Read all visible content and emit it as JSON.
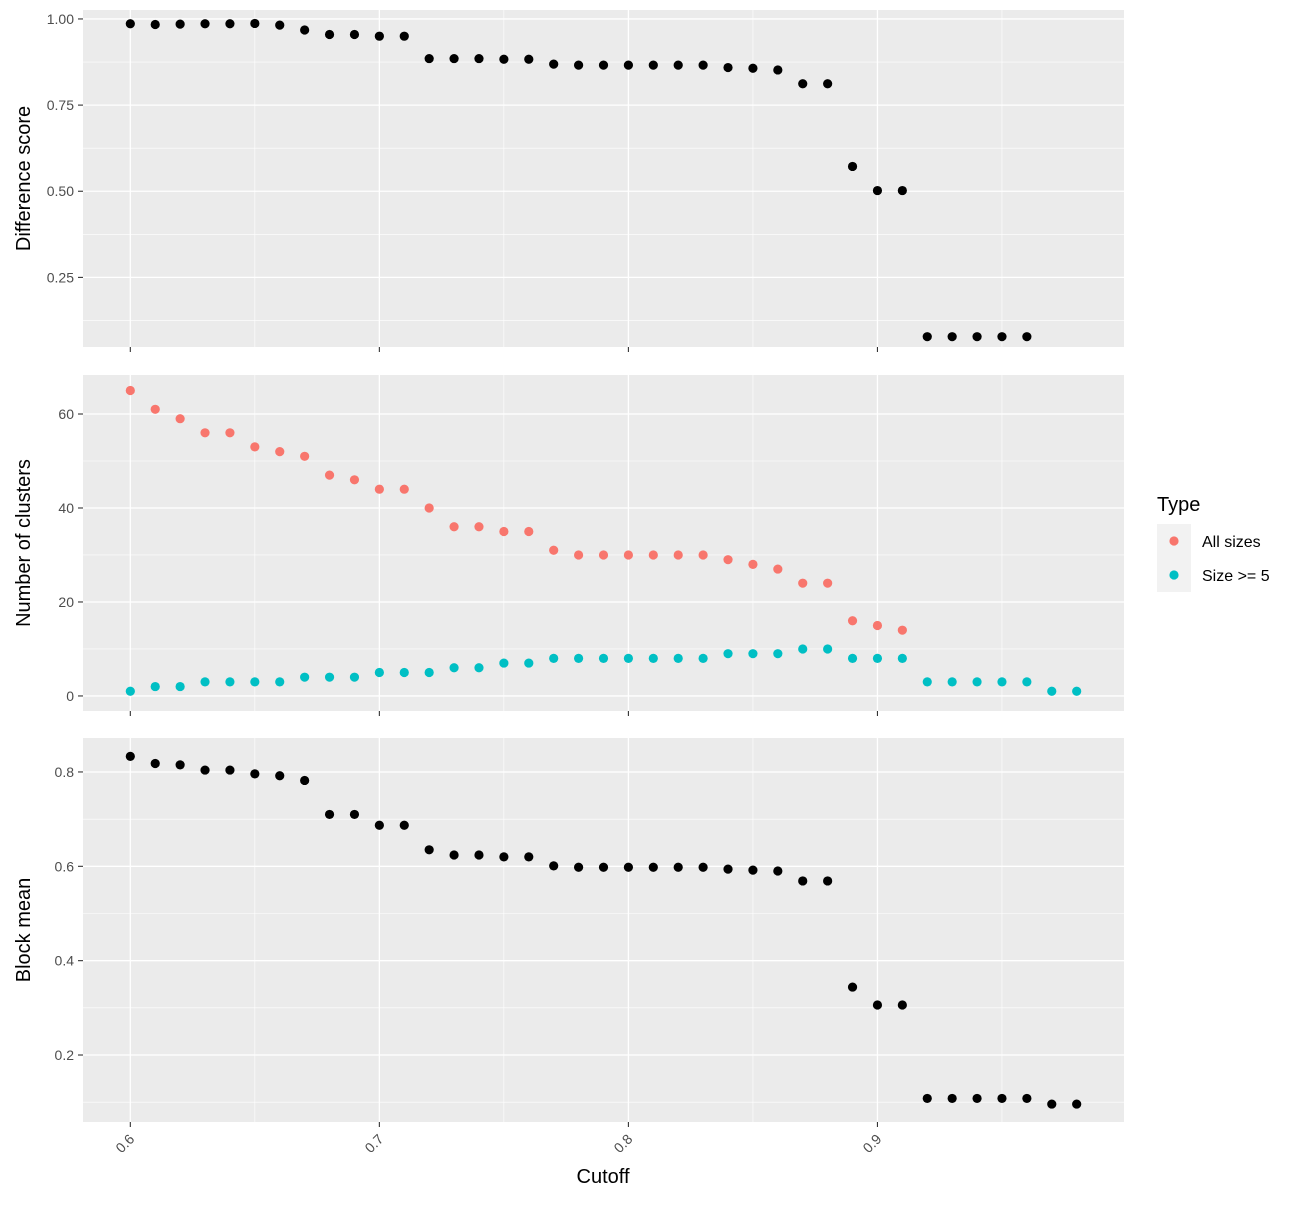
{
  "chart_data": {
    "type": "scatter",
    "layout": "stacked-facets-shared-x",
    "xlabel": "Cutoff",
    "x_ticks": [
      0.6,
      0.7,
      0.8,
      0.9
    ],
    "x_tick_labels": [
      "0.6",
      "0.7",
      "0.8",
      "0.9"
    ],
    "xlim": [
      0.581,
      0.999
    ],
    "grid": true,
    "legend": {
      "title": "Type",
      "placement": "right",
      "entries": [
        {
          "label": "All sizes",
          "color": "#F8766D"
        },
        {
          "label": "Size >= 5",
          "color": "#00BFC4"
        }
      ]
    },
    "panels": [
      {
        "ylabel": "Difference score",
        "ylim": [
          0.048,
          1.026
        ],
        "y_ticks": [
          0.25,
          0.5,
          0.75,
          1.0
        ],
        "y_tick_labels": [
          "0.25",
          "0.50",
          "0.75",
          "1.00"
        ],
        "series": [
          {
            "color": "#000000",
            "points": [
              [
                0.6,
                0.986
              ],
              [
                0.61,
                0.984
              ],
              [
                0.62,
                0.985
              ],
              [
                0.63,
                0.986
              ],
              [
                0.64,
                0.986
              ],
              [
                0.65,
                0.987
              ],
              [
                0.66,
                0.982
              ],
              [
                0.67,
                0.968
              ],
              [
                0.68,
                0.955
              ],
              [
                0.69,
                0.955
              ],
              [
                0.7,
                0.95
              ],
              [
                0.71,
                0.95
              ],
              [
                0.72,
                0.885
              ],
              [
                0.73,
                0.885
              ],
              [
                0.74,
                0.885
              ],
              [
                0.75,
                0.883
              ],
              [
                0.76,
                0.883
              ],
              [
                0.77,
                0.869
              ],
              [
                0.78,
                0.866
              ],
              [
                0.79,
                0.866
              ],
              [
                0.8,
                0.866
              ],
              [
                0.81,
                0.866
              ],
              [
                0.82,
                0.866
              ],
              [
                0.83,
                0.866
              ],
              [
                0.84,
                0.859
              ],
              [
                0.85,
                0.857
              ],
              [
                0.86,
                0.852
              ],
              [
                0.87,
                0.812
              ],
              [
                0.88,
                0.812
              ],
              [
                0.89,
                0.572
              ],
              [
                0.9,
                0.502
              ],
              [
                0.91,
                0.502
              ],
              [
                0.92,
                0.078
              ],
              [
                0.93,
                0.078
              ],
              [
                0.94,
                0.078
              ],
              [
                0.95,
                0.078
              ],
              [
                0.96,
                0.078
              ]
            ]
          }
        ]
      },
      {
        "ylabel": "Number of clusters",
        "ylim": [
          -3.2,
          68.3
        ],
        "y_ticks": [
          0,
          20,
          40,
          60
        ],
        "y_tick_labels": [
          "0",
          "20",
          "40",
          "60"
        ],
        "series": [
          {
            "name": "All sizes",
            "color": "#F8766D",
            "points": [
              [
                0.6,
                65
              ],
              [
                0.61,
                61
              ],
              [
                0.62,
                59
              ],
              [
                0.63,
                56
              ],
              [
                0.64,
                56
              ],
              [
                0.65,
                53
              ],
              [
                0.66,
                52
              ],
              [
                0.67,
                51
              ],
              [
                0.68,
                47
              ],
              [
                0.69,
                46
              ],
              [
                0.7,
                44
              ],
              [
                0.71,
                44
              ],
              [
                0.72,
                40
              ],
              [
                0.73,
                36
              ],
              [
                0.74,
                36
              ],
              [
                0.75,
                35
              ],
              [
                0.76,
                35
              ],
              [
                0.77,
                31
              ],
              [
                0.78,
                30
              ],
              [
                0.79,
                30
              ],
              [
                0.8,
                30
              ],
              [
                0.81,
                30
              ],
              [
                0.82,
                30
              ],
              [
                0.83,
                30
              ],
              [
                0.84,
                29
              ],
              [
                0.85,
                28
              ],
              [
                0.86,
                27
              ],
              [
                0.87,
                24
              ],
              [
                0.88,
                24
              ],
              [
                0.89,
                16
              ],
              [
                0.9,
                15
              ],
              [
                0.91,
                14
              ]
            ]
          },
          {
            "name": "Size >= 5",
            "color": "#00BFC4",
            "points": [
              [
                0.6,
                1
              ],
              [
                0.61,
                2
              ],
              [
                0.62,
                2
              ],
              [
                0.63,
                3
              ],
              [
                0.64,
                3
              ],
              [
                0.65,
                3
              ],
              [
                0.66,
                3
              ],
              [
                0.67,
                4
              ],
              [
                0.68,
                4
              ],
              [
                0.69,
                4
              ],
              [
                0.7,
                5
              ],
              [
                0.71,
                5
              ],
              [
                0.72,
                5
              ],
              [
                0.73,
                6
              ],
              [
                0.74,
                6
              ],
              [
                0.75,
                7
              ],
              [
                0.76,
                7
              ],
              [
                0.77,
                8
              ],
              [
                0.78,
                8
              ],
              [
                0.79,
                8
              ],
              [
                0.8,
                8
              ],
              [
                0.81,
                8
              ],
              [
                0.82,
                8
              ],
              [
                0.83,
                8
              ],
              [
                0.84,
                9
              ],
              [
                0.85,
                9
              ],
              [
                0.86,
                9
              ],
              [
                0.87,
                10
              ],
              [
                0.88,
                10
              ],
              [
                0.89,
                8
              ],
              [
                0.9,
                8
              ],
              [
                0.91,
                8
              ],
              [
                0.92,
                3
              ],
              [
                0.93,
                3
              ],
              [
                0.94,
                3
              ],
              [
                0.95,
                3
              ],
              [
                0.96,
                3
              ],
              [
                0.97,
                1
              ],
              [
                0.98,
                1
              ]
            ]
          }
        ]
      },
      {
        "ylabel": "Block mean",
        "ylim": [
          0.058,
          0.872
        ],
        "y_ticks": [
          0.2,
          0.4,
          0.6,
          0.8
        ],
        "y_tick_labels": [
          "0.2",
          "0.4",
          "0.6",
          "0.8"
        ],
        "series": [
          {
            "color": "#000000",
            "points": [
              [
                0.6,
                0.833
              ],
              [
                0.61,
                0.818
              ],
              [
                0.62,
                0.815
              ],
              [
                0.63,
                0.804
              ],
              [
                0.64,
                0.804
              ],
              [
                0.65,
                0.796
              ],
              [
                0.66,
                0.792
              ],
              [
                0.67,
                0.782
              ],
              [
                0.68,
                0.71
              ],
              [
                0.69,
                0.71
              ],
              [
                0.7,
                0.687
              ],
              [
                0.71,
                0.687
              ],
              [
                0.72,
                0.635
              ],
              [
                0.73,
                0.624
              ],
              [
                0.74,
                0.624
              ],
              [
                0.75,
                0.62
              ],
              [
                0.76,
                0.62
              ],
              [
                0.77,
                0.601
              ],
              [
                0.78,
                0.598
              ],
              [
                0.79,
                0.598
              ],
              [
                0.8,
                0.598
              ],
              [
                0.81,
                0.598
              ],
              [
                0.82,
                0.598
              ],
              [
                0.83,
                0.598
              ],
              [
                0.84,
                0.594
              ],
              [
                0.85,
                0.592
              ],
              [
                0.86,
                0.59
              ],
              [
                0.87,
                0.569
              ],
              [
                0.88,
                0.569
              ],
              [
                0.89,
                0.344
              ],
              [
                0.9,
                0.306
              ],
              [
                0.91,
                0.306
              ],
              [
                0.92,
                0.108
              ],
              [
                0.93,
                0.108
              ],
              [
                0.94,
                0.108
              ],
              [
                0.95,
                0.108
              ],
              [
                0.96,
                0.108
              ],
              [
                0.97,
                0.096
              ],
              [
                0.98,
                0.096
              ]
            ]
          }
        ]
      }
    ]
  }
}
